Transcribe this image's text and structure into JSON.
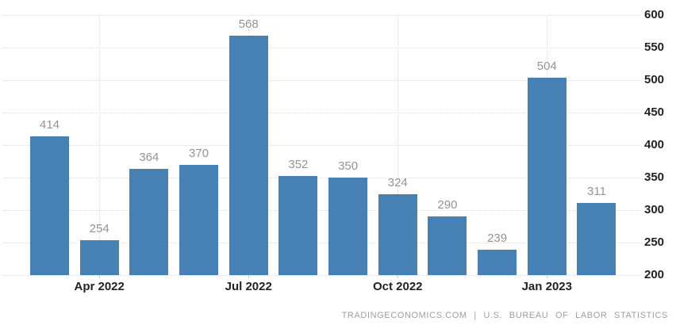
{
  "chart_data": {
    "type": "bar",
    "title": "",
    "xlabel": "",
    "ylabel": "",
    "values": [
      414,
      254,
      364,
      370,
      568,
      352,
      350,
      324,
      290,
      239,
      504,
      311
    ],
    "bar_value_labels": [
      "414",
      "254",
      "364",
      "370",
      "568",
      "352",
      "350",
      "324",
      "290",
      "239",
      "504",
      "311"
    ],
    "x_tick_labels": [
      {
        "label": "Apr 2022",
        "bar_index": 1
      },
      {
        "label": "Jul 2022",
        "bar_index": 4
      },
      {
        "label": "Oct 2022",
        "bar_index": 7
      },
      {
        "label": "Jan 2023",
        "bar_index": 10
      }
    ],
    "y_ticks": [
      200,
      250,
      300,
      350,
      400,
      450,
      500,
      550,
      600
    ],
    "ylim": [
      200,
      600
    ],
    "y_axis_position": "right",
    "grid": "dotted",
    "legend": "none",
    "bar_color": "#4781b3",
    "value_label_color": "#949494",
    "axis_label_color": "#222222",
    "gridline_color": "#dcdcdc"
  },
  "footer": {
    "attribution": "TRADINGECONOMICS.COM | U.S. BUREAU OF LABOR STATISTICS"
  }
}
